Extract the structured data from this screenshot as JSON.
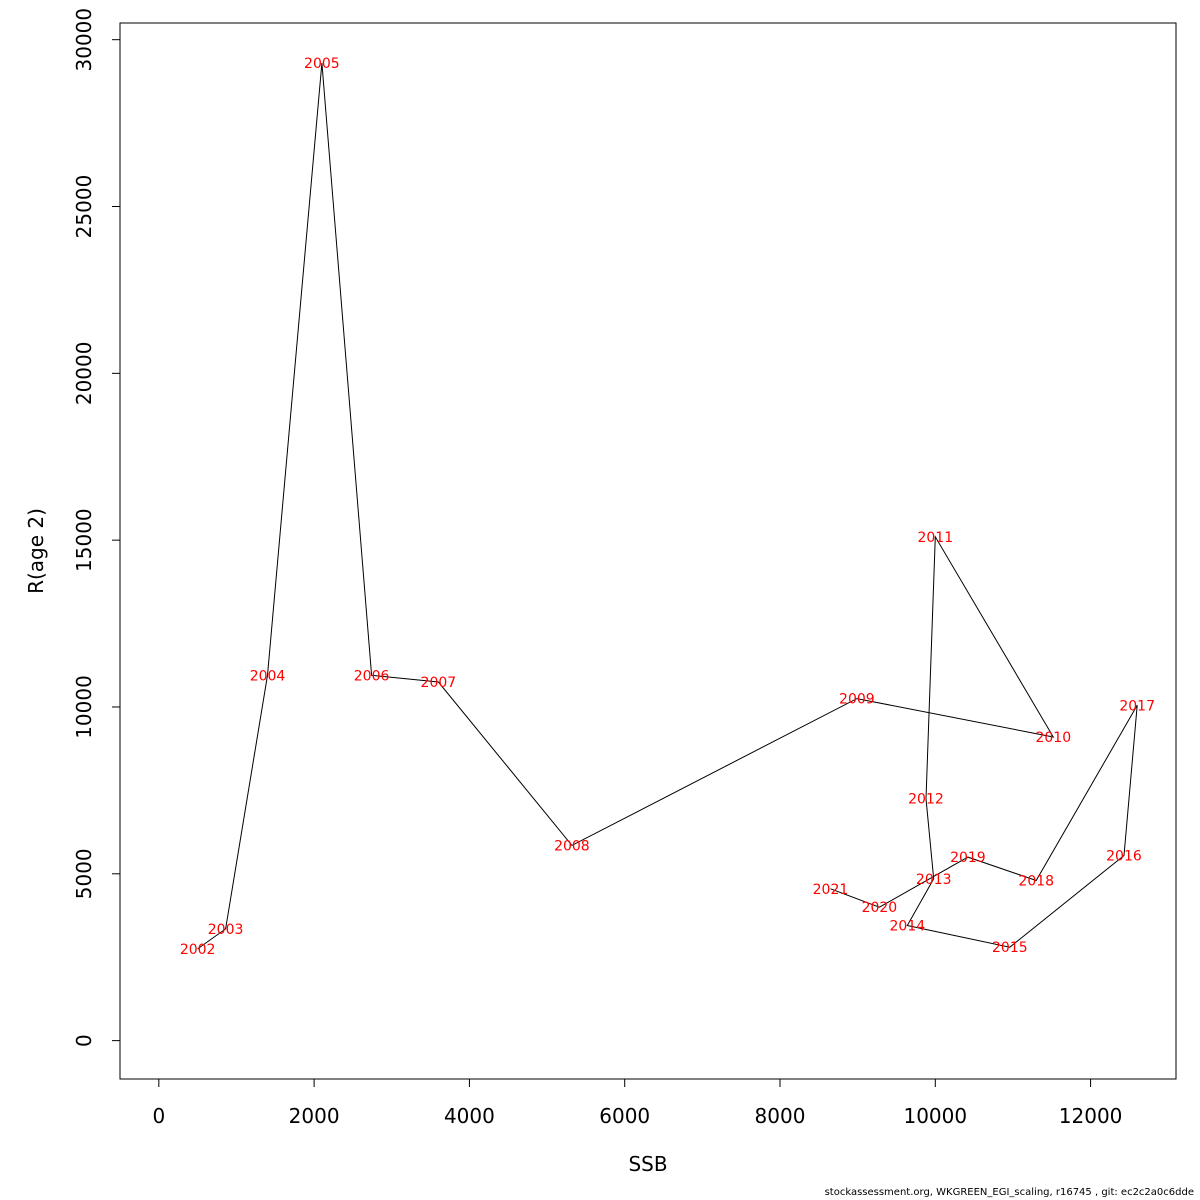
{
  "chart_data": {
    "type": "line",
    "xlabel": "SSB",
    "ylabel": "R(age 2)",
    "xlim": [
      -500,
      13100
    ],
    "ylim": [
      -1150,
      30500
    ],
    "xticks": [
      0,
      2000,
      4000,
      6000,
      8000,
      10000,
      12000
    ],
    "xtick_labels": [
      "0",
      "2000",
      "4000",
      "6000",
      "8000",
      "10000",
      "12000"
    ],
    "yticks": [
      0,
      5000,
      10000,
      15000,
      20000,
      25000,
      30000
    ],
    "ytick_labels": [
      "0",
      "5000",
      "10000",
      "15000",
      "20000",
      "25000",
      "30000"
    ],
    "grid": false,
    "line_color": "#000000",
    "label_color": "#ff0000",
    "points": [
      {
        "label": "2002",
        "x": 500,
        "y": 2750
      },
      {
        "label": "2003",
        "x": 860,
        "y": 3350
      },
      {
        "label": "2004",
        "x": 1400,
        "y": 10950
      },
      {
        "label": "2005",
        "x": 2100,
        "y": 29300
      },
      {
        "label": "2006",
        "x": 2740,
        "y": 10950
      },
      {
        "label": "2007",
        "x": 3600,
        "y": 10750
      },
      {
        "label": "2008",
        "x": 5320,
        "y": 5850
      },
      {
        "label": "2009",
        "x": 8990,
        "y": 10250
      },
      {
        "label": "2010",
        "x": 11520,
        "y": 9100
      },
      {
        "label": "2011",
        "x": 10000,
        "y": 15100
      },
      {
        "label": "2012",
        "x": 9880,
        "y": 7250
      },
      {
        "label": "2013",
        "x": 9980,
        "y": 4850
      },
      {
        "label": "2014",
        "x": 9640,
        "y": 3450
      },
      {
        "label": "2015",
        "x": 10960,
        "y": 2800
      },
      {
        "label": "2016",
        "x": 12430,
        "y": 5550
      },
      {
        "label": "2017",
        "x": 12600,
        "y": 10050
      },
      {
        "label": "2018",
        "x": 11300,
        "y": 4800
      },
      {
        "label": "2019",
        "x": 10420,
        "y": 5500
      },
      {
        "label": "2020",
        "x": 9280,
        "y": 4000
      },
      {
        "label": "2021",
        "x": 8650,
        "y": 4550
      }
    ]
  },
  "footer": "stockassessment.org, WKGREEN_EGI_scaling, r16745 , git: ec2c2a0c6dde"
}
